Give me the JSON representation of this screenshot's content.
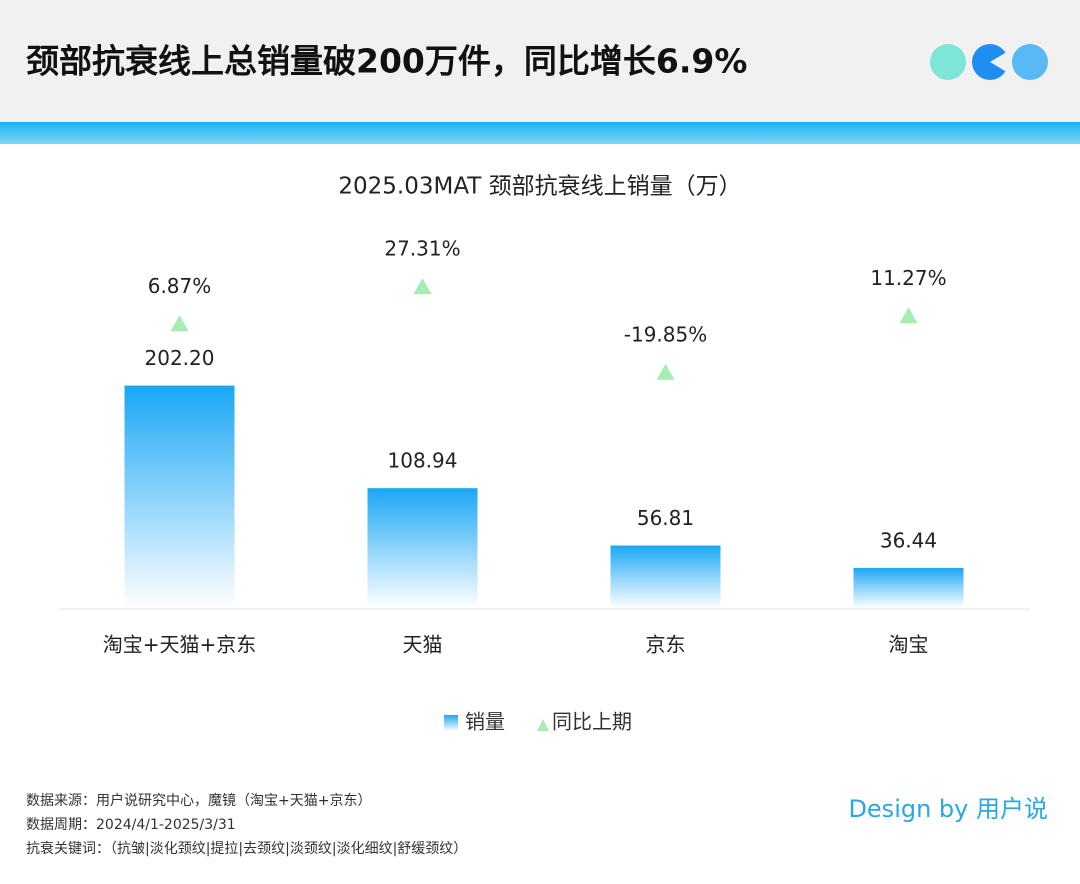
{
  "header": {
    "title": "颈部抗衰线上总销量破200万件，同比增长6.9%"
  },
  "chart_data": {
    "type": "bar",
    "title": "2025.03MAT 颈部抗衰线上销量（万）",
    "categories": [
      "淘宝+天猫+京东",
      "天猫",
      "京东",
      "淘宝"
    ],
    "ylim": [
      0,
      330
    ],
    "y2lim": [
      -150,
      50
    ],
    "series": [
      {
        "name": "销量",
        "type": "bar",
        "color": "#1aa7f5",
        "values": [
          202.2,
          108.94,
          56.81,
          36.44
        ],
        "value_labels": [
          "202.20",
          "108.94",
          "56.81",
          "36.44"
        ]
      },
      {
        "name": "同比上期",
        "type": "scatter",
        "axis": "y2",
        "color": "#a6ecb3",
        "values": [
          6.87,
          27.31,
          -19.85,
          11.27
        ],
        "value_labels": [
          "6.87%",
          "27.31%",
          "-19.85%",
          "11.27%"
        ]
      }
    ]
  },
  "footer": {
    "notes": [
      "数据来源：用户说研究中心，魔镜（淘宝+天猫+京东）",
      "数据周期：2024/4/1-2025/3/31",
      "抗衰关键词：（抗皱|淡化颈纹|提拉|去颈纹|淡颈纹|淡化细纹|舒缓颈纹）"
    ],
    "credit": "Design by 用户说"
  }
}
